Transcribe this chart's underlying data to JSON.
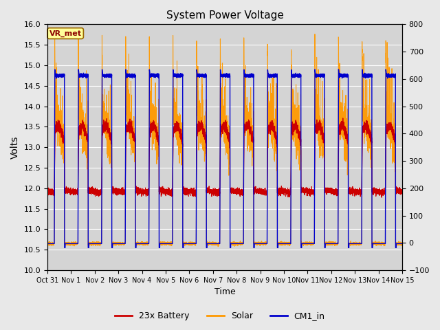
{
  "title": "System Power Voltage",
  "ylabel_left": "Volts",
  "xlabel": "Time",
  "ylim_left": [
    10.0,
    16.0
  ],
  "ylim_right": [
    -100,
    800
  ],
  "x_tick_labels": [
    "Oct 31",
    "Nov 1",
    "Nov 2",
    "Nov 3",
    "Nov 4",
    "Nov 5",
    "Nov 6",
    "Nov 7",
    "Nov 8",
    "Nov 9",
    "Nov 10",
    "Nov 11",
    "Nov 12",
    "Nov 13",
    "Nov 14",
    "Nov 15"
  ],
  "yticks_left": [
    10.0,
    10.5,
    11.0,
    11.5,
    12.0,
    12.5,
    13.0,
    13.5,
    14.0,
    14.5,
    15.0,
    15.5,
    16.0
  ],
  "yticks_right": [
    -100,
    0,
    100,
    200,
    300,
    400,
    500,
    600,
    700,
    800
  ],
  "color_battery": "#cc0000",
  "color_solar": "#ff9900",
  "color_cm1": "#0000cc",
  "background_color": "#e8e8e8",
  "plot_bg_color": "#d4d4d4",
  "vr_met_box_color": "#ffff99",
  "vr_met_text_color": "#8b0000",
  "legend_labels": [
    "23x Battery",
    "Solar",
    "CM1_in"
  ],
  "num_days": 15,
  "night_level": 10.65,
  "battery_night": 11.95,
  "day_start": 0.29,
  "day_end": 0.72
}
